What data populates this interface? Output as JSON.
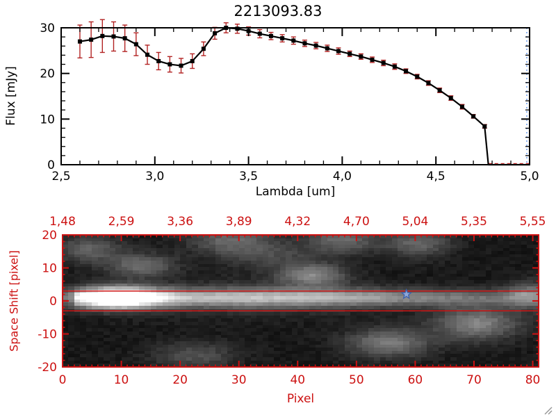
{
  "chart_data": [
    {
      "type": "line",
      "title": "2213093.83",
      "xlabel": "Lambda [um]",
      "ylabel": "Flux [mJy]",
      "xlim": [
        2.5,
        5.0
      ],
      "ylim": [
        0,
        30
      ],
      "xtick_values": [
        2.5,
        3.0,
        3.5,
        4.0,
        4.5,
        5.0
      ],
      "xtick_labels": [
        "2,5",
        "3,0",
        "3,5",
        "4,0",
        "4,5",
        "5,0"
      ],
      "ytick_values": [
        0,
        10,
        20,
        30
      ],
      "ytick_labels": [
        "0",
        "10",
        "20",
        "30"
      ],
      "x_minor_step": 0.1,
      "y_minor_step": 2,
      "marker": "filled-square",
      "x": [
        2.6,
        2.66,
        2.72,
        2.78,
        2.84,
        2.9,
        2.96,
        3.02,
        3.08,
        3.14,
        3.2,
        3.26,
        3.32,
        3.38,
        3.44,
        3.5,
        3.56,
        3.62,
        3.68,
        3.74,
        3.8,
        3.86,
        3.92,
        3.98,
        4.04,
        4.1,
        4.16,
        4.22,
        4.28,
        4.34,
        4.4,
        4.46,
        4.52,
        4.58,
        4.64,
        4.7,
        4.76
      ],
      "y": [
        27.0,
        27.4,
        28.2,
        28.1,
        27.7,
        26.4,
        24.1,
        22.7,
        22.0,
        21.7,
        22.7,
        25.4,
        28.8,
        30.0,
        29.8,
        29.3,
        28.7,
        28.2,
        27.7,
        27.2,
        26.6,
        26.1,
        25.5,
        24.9,
        24.3,
        23.7,
        23.0,
        22.3,
        21.5,
        20.5,
        19.3,
        17.9,
        16.3,
        14.6,
        12.7,
        10.6,
        8.4
      ],
      "yerr": [
        3.6,
        3.9,
        3.6,
        3.2,
        2.9,
        2.5,
        2.1,
        1.9,
        1.7,
        1.6,
        1.6,
        1.5,
        1.3,
        1.1,
        1.0,
        0.9,
        0.9,
        0.8,
        0.8,
        0.8,
        0.7,
        0.7,
        0.7,
        0.7,
        0.6,
        0.6,
        0.6,
        0.6,
        0.6,
        0.5,
        0.5,
        0.5,
        0.5,
        0.5,
        0.5,
        0.4,
        0.4
      ],
      "tail": {
        "x": [
          4.78,
          5.0
        ],
        "y": [
          0,
          0
        ]
      },
      "zero_dash": {
        "x0": 4.78,
        "x1": 5.0
      },
      "right_guide_x": 4.985,
      "colors": {
        "line": "#000000",
        "marker": "#000000",
        "error": "#b22222",
        "guide": "#6699ee",
        "zero_dash": "#cc2222",
        "axis": "#000000"
      }
    },
    {
      "type": "heatmap",
      "xlabel": "Pixel",
      "ylabel": "Space Shift [pixel]",
      "top_axis_labels": [
        "1,48",
        "2,59",
        "3,36",
        "3,89",
        "4,32",
        "4,70",
        "5,04",
        "5,35",
        "5,55"
      ],
      "xtick_values": [
        0,
        10,
        20,
        30,
        40,
        50,
        60,
        70,
        80
      ],
      "xtick_labels": [
        "0",
        "10",
        "20",
        "30",
        "40",
        "50",
        "60",
        "70",
        "80"
      ],
      "ytick_values": [
        20,
        10,
        0,
        -10,
        -20
      ],
      "ytick_labels": [
        "20",
        "10",
        "0",
        "-10",
        "-20"
      ],
      "xlim": [
        0,
        81
      ],
      "ylim": [
        -20,
        20
      ],
      "axis_color": "#cc1111",
      "aperture_lines": [
        3,
        -3
      ],
      "star": {
        "x": 58.5,
        "y": 2,
        "fill": "#8fa8d8",
        "stroke": "#3a5fae"
      },
      "image": {
        "cols": 81,
        "rows": 41,
        "background": 0.06,
        "noise": 0.07,
        "band": {
          "y": 1,
          "sigma": 1.9,
          "base": 0.5,
          "fade_start": 50,
          "fade_amount": 0.55
        },
        "blobs": [
          {
            "x": 9,
            "y": 1,
            "sx": 5,
            "sy": 2.4,
            "a": 0.95
          },
          {
            "x": 32,
            "y": 1,
            "sx": 14,
            "sy": 3.5,
            "a": 0.18
          },
          {
            "x": 13,
            "y": 11,
            "sx": 4,
            "sy": 2.6,
            "a": 0.33
          },
          {
            "x": 4,
            "y": 16,
            "sx": 4,
            "sy": 3.0,
            "a": 0.28
          },
          {
            "x": 28,
            "y": 19,
            "sx": 5,
            "sy": 3.0,
            "a": 0.3
          },
          {
            "x": 42,
            "y": 8,
            "sx": 4,
            "sy": 2.4,
            "a": 0.42
          },
          {
            "x": 47,
            "y": 19,
            "sx": 4,
            "sy": 3.0,
            "a": 0.32
          },
          {
            "x": 55,
            "y": -13,
            "sx": 5,
            "sy": 3.2,
            "a": 0.38
          },
          {
            "x": 60,
            "y": 18,
            "sx": 4,
            "sy": 3.0,
            "a": 0.3
          },
          {
            "x": 70,
            "y": -7,
            "sx": 5,
            "sy": 3.6,
            "a": 0.42
          },
          {
            "x": 79,
            "y": 2,
            "sx": 3,
            "sy": 3.0,
            "a": 0.3
          },
          {
            "x": 22,
            "y": -17,
            "sx": 5,
            "sy": 3.0,
            "a": 0.22
          },
          {
            "x": 35,
            "y": 14,
            "sx": 6,
            "sy": 3.0,
            "a": 0.18
          }
        ]
      }
    }
  ]
}
